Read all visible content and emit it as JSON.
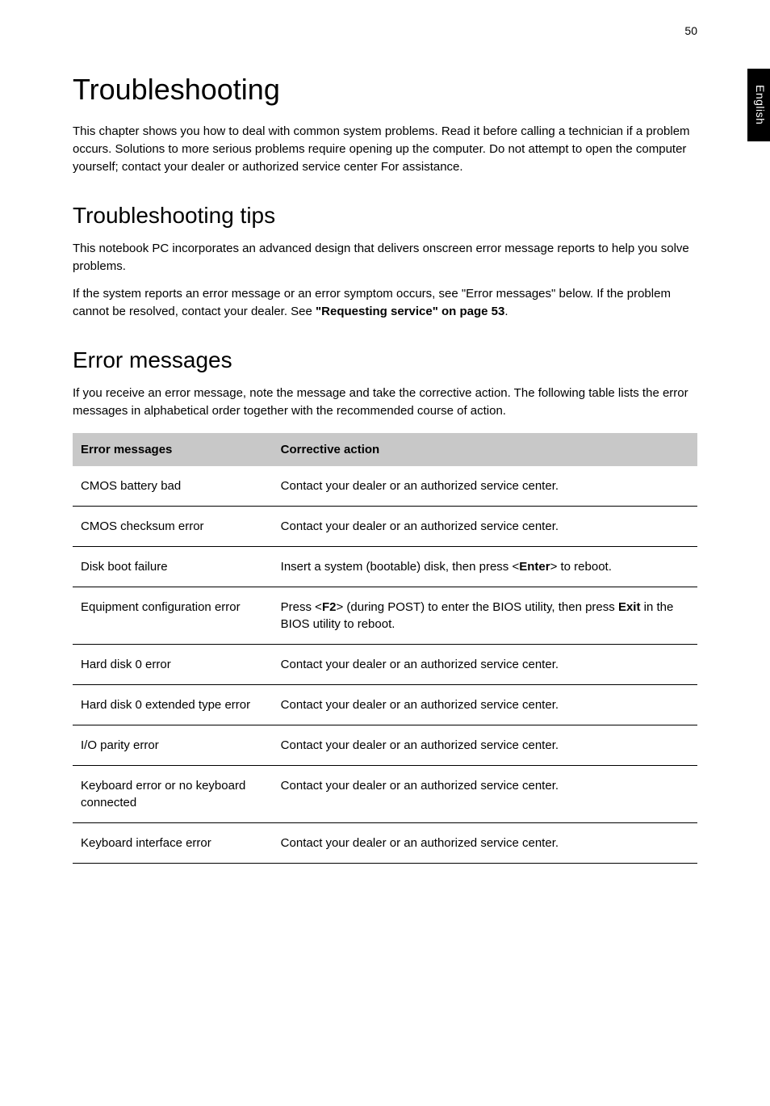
{
  "page": {
    "number": "50",
    "side_tab": "English"
  },
  "headings": {
    "h1": "Troubleshooting",
    "h2_tips": "Troubleshooting tips",
    "h2_errors": "Error messages"
  },
  "paragraphs": {
    "intro": "This chapter shows you how to deal with common system problems.\nRead it before calling a technician if a problem occurs. Solutions to more serious problems require opening up the computer. Do not attempt to open the computer yourself; contact your dealer or authorized service center For assistance.",
    "tips1": "This notebook PC incorporates an advanced design that delivers onscreen error message reports to help you solve problems.",
    "tips2_pre": "If the system reports an error message or an error symptom occurs, see \"Error messages\" below. If the problem cannot be resolved, contact your dealer. See ",
    "tips2_bold": "\"Requesting service\" on page 53",
    "tips2_post": ".",
    "errors_intro": "If you receive an error message, note the message and take the corrective action. The following table lists the error messages in alphabetical order together with the recommended course of action."
  },
  "table": {
    "head": {
      "col1": "Error messages",
      "col2": "Corrective action"
    },
    "rows": [
      {
        "msg": "CMOS battery bad",
        "action_parts": [
          {
            "t": "Contact your dealer or an authorized service center."
          }
        ]
      },
      {
        "msg": "CMOS checksum error",
        "action_parts": [
          {
            "t": "Contact your dealer or an authorized service center."
          }
        ]
      },
      {
        "msg": "Disk boot failure",
        "action_parts": [
          {
            "t": "Insert a system (bootable) disk, then press <"
          },
          {
            "t": "Enter",
            "b": true
          },
          {
            "t": "> to reboot."
          }
        ]
      },
      {
        "msg": "Equipment configuration error",
        "action_parts": [
          {
            "t": "Press <"
          },
          {
            "t": "F2",
            "b": true
          },
          {
            "t": "> (during POST) to enter the BIOS utility, then press "
          },
          {
            "t": "Exit",
            "b": true
          },
          {
            "t": " in the BIOS utility to reboot."
          }
        ]
      },
      {
        "msg": "Hard disk 0 error",
        "action_parts": [
          {
            "t": "Contact your dealer or an authorized service center."
          }
        ]
      },
      {
        "msg": "Hard disk 0 extended type error",
        "action_parts": [
          {
            "t": "Contact your dealer or an authorized service center."
          }
        ]
      },
      {
        "msg": "I/O parity error",
        "action_parts": [
          {
            "t": "Contact your dealer or an authorized service center."
          }
        ]
      },
      {
        "msg": "Keyboard error or no keyboard connected",
        "action_parts": [
          {
            "t": "Contact your dealer or an authorized service center."
          }
        ]
      },
      {
        "msg": "Keyboard interface error",
        "action_parts": [
          {
            "t": "Contact your dealer or an authorized service center."
          }
        ]
      }
    ]
  }
}
